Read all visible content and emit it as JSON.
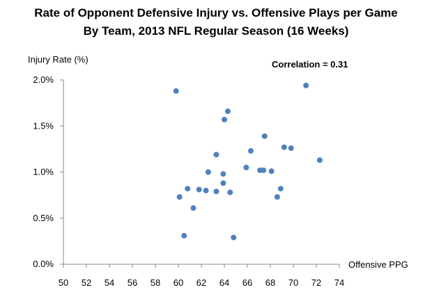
{
  "chart_data": {
    "type": "scatter",
    "title_lines": [
      "Rate of Opponent Defensive Injury vs. Offensive Plays per Game",
      "By Team, 2013 NFL Regular Season (16 Weeks)"
    ],
    "xlabel": "Offensive PPG",
    "ylabel": "Injury Rate (%)",
    "annotation": "Correlation = 0.31",
    "xlim": [
      50,
      74
    ],
    "ylim": [
      0.0,
      2.0
    ],
    "x_ticks": [
      "50",
      "52",
      "54",
      "56",
      "58",
      "60",
      "62",
      "64",
      "66",
      "68",
      "70",
      "72",
      "74"
    ],
    "y_ticks": [
      "0.0%",
      "0.5%",
      "1.0%",
      "1.5%",
      "2.0%"
    ],
    "grid": false,
    "point_color": "#4f81bd",
    "points": [
      {
        "x": 59.8,
        "y": 1.88
      },
      {
        "x": 60.1,
        "y": 0.73
      },
      {
        "x": 60.5,
        "y": 0.31
      },
      {
        "x": 60.8,
        "y": 0.82
      },
      {
        "x": 61.3,
        "y": 0.61
      },
      {
        "x": 61.8,
        "y": 0.81
      },
      {
        "x": 62.4,
        "y": 0.8
      },
      {
        "x": 62.6,
        "y": 1.0
      },
      {
        "x": 63.3,
        "y": 0.79
      },
      {
        "x": 63.3,
        "y": 1.19
      },
      {
        "x": 63.9,
        "y": 0.88
      },
      {
        "x": 63.9,
        "y": 0.98
      },
      {
        "x": 64.0,
        "y": 1.57
      },
      {
        "x": 64.3,
        "y": 1.66
      },
      {
        "x": 64.5,
        "y": 0.78
      },
      {
        "x": 64.8,
        "y": 0.29
      },
      {
        "x": 65.9,
        "y": 1.05
      },
      {
        "x": 66.3,
        "y": 1.23
      },
      {
        "x": 67.1,
        "y": 1.02
      },
      {
        "x": 67.4,
        "y": 1.02
      },
      {
        "x": 67.5,
        "y": 1.39
      },
      {
        "x": 68.1,
        "y": 1.01
      },
      {
        "x": 68.6,
        "y": 0.73
      },
      {
        "x": 68.9,
        "y": 0.82
      },
      {
        "x": 69.2,
        "y": 1.27
      },
      {
        "x": 69.8,
        "y": 1.26
      },
      {
        "x": 71.1,
        "y": 1.94
      },
      {
        "x": 72.3,
        "y": 1.13
      }
    ]
  }
}
